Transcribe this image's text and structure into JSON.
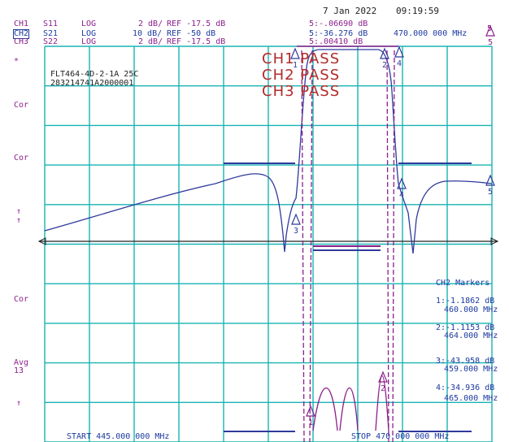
{
  "header": {
    "date": "7 Jan 2022",
    "time": "09:19:59",
    "channels": [
      {
        "label": "CH1",
        "param": "S11",
        "format": "LOG",
        "scale": "2 dB/",
        "ref": "REF -17.5 dB"
      },
      {
        "label": "CH2",
        "param": "S21",
        "format": "LOG",
        "scale": "10 dB/",
        "ref": "REF -50 dB"
      },
      {
        "label": "CH3",
        "param": "S22",
        "format": "LOG",
        "scale": "2 dB/",
        "ref": "REF -17.5 dB"
      }
    ],
    "marker_readouts": [
      "5:-.06690 dB",
      "5:-36.276 dB",
      "5:.00410 dB"
    ],
    "marker_freq": "470.000 000 MHz",
    "marker_num": "5"
  },
  "left_labels": [
    "*",
    "Cor",
    "Cor",
    "↑",
    "↑",
    "Cor",
    "Avg",
    "13",
    "↑"
  ],
  "device": {
    "name": "FLT464-4D-2-1A 25C",
    "serial": "283214741A2000001"
  },
  "pass_labels": [
    "CH1 PASS",
    "CH2 PASS",
    "CH3 PASS"
  ],
  "markers_panel": {
    "title": "CH2 Markers",
    "items": [
      {
        "val": "1:-1.1862 dB",
        "freq": "460.000 MHz"
      },
      {
        "val": "2:-1.1153 dB",
        "freq": "464.000 MHz"
      },
      {
        "val": "3:-43.958 dB",
        "freq": "459.000 MHz"
      },
      {
        "val": "4:-34.936 dB",
        "freq": "465.000 MHz"
      }
    ]
  },
  "footer": {
    "start": "START 445.000 000 MHz",
    "stop": "STOP 470.000 000 MHz"
  },
  "colors": {
    "grid": "#19b3b3",
    "ch2": "#2f3a9c",
    "ch1": "#8c1f8c",
    "ref": "#222222"
  }
}
